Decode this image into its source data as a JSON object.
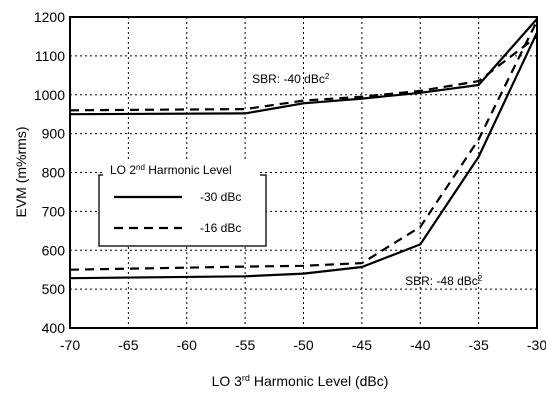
{
  "chart_data": {
    "type": "line",
    "title": "",
    "xlabel": {
      "main": "LO 3",
      "sup": "rd",
      "rest": " Harmonic Level (dBc)"
    },
    "ylabel": "EVM (m%rms)",
    "xlim": [
      -70,
      -30
    ],
    "ylim": [
      400,
      1200
    ],
    "xticks": [
      -70,
      -65,
      -60,
      -55,
      -50,
      -45,
      -40,
      -35,
      -30
    ],
    "yticks": [
      400,
      500,
      600,
      700,
      800,
      900,
      1000,
      1100,
      1200
    ],
    "grid": true,
    "legend": {
      "title": {
        "main": "LO 2",
        "sup": "nd",
        "rest": " Harmonic Level"
      },
      "placement": "center-left",
      "entries": [
        {
          "label": "-30 dBc",
          "style": "solid"
        },
        {
          "label": "-16 dBc",
          "style": "dashed"
        }
      ]
    },
    "series": [
      {
        "group": "SBR -40",
        "level": "-30 dBc",
        "style": "solid",
        "x": [
          -70,
          -55,
          -50,
          -45,
          -40,
          -35,
          -30
        ],
        "y": [
          950,
          952,
          978,
          990,
          1005,
          1025,
          1195
        ]
      },
      {
        "group": "SBR -40",
        "level": "-16 dBc",
        "style": "dashed",
        "x": [
          -70,
          -55,
          -50,
          -45,
          -40,
          -35,
          -30
        ],
        "y": [
          960,
          963,
          985,
          995,
          1010,
          1035,
          1150
        ]
      },
      {
        "group": "SBR -48",
        "level": "-30 dBc",
        "style": "solid",
        "x": [
          -70,
          -55,
          -50,
          -45,
          -40,
          -35,
          -30
        ],
        "y": [
          528,
          533,
          540,
          557,
          615,
          840,
          1160
        ]
      },
      {
        "group": "SBR -48",
        "level": "-16 dBc",
        "style": "dashed",
        "x": [
          -70,
          -55,
          -50,
          -45,
          -40,
          -35,
          -30
        ],
        "y": [
          550,
          558,
          560,
          567,
          660,
          885,
          1190
        ]
      }
    ],
    "annotations": [
      {
        "text": "SBR: -40 dBc",
        "sup": "2",
        "x": -54.4,
        "y": 1030
      },
      {
        "text": "SBR: -48 dBc",
        "sup": "2",
        "x": -41.3,
        "y": 510
      }
    ]
  }
}
